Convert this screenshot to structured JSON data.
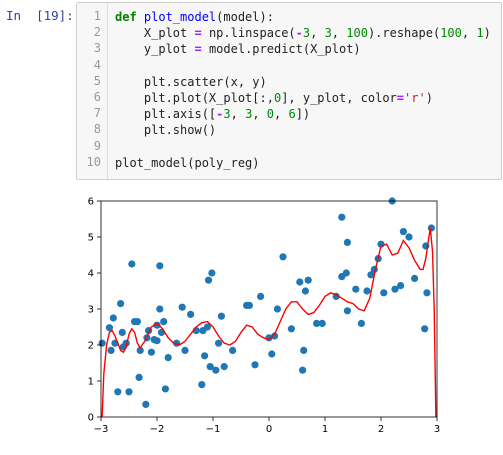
{
  "prompt": "In  [19]:",
  "code_lines": [
    {
      "n": "1",
      "tokens": [
        [
          "kw",
          "def "
        ],
        [
          "fn",
          "plot_model"
        ],
        [
          "",
          "(model):"
        ]
      ]
    },
    {
      "n": "2",
      "tokens": [
        [
          "",
          "    X_plot "
        ],
        [
          "op",
          "="
        ],
        [
          "",
          " np.linspace("
        ],
        [
          "op",
          "-"
        ],
        [
          "num",
          "3"
        ],
        [
          "",
          ", "
        ],
        [
          "num",
          "3"
        ],
        [
          "",
          ", "
        ],
        [
          "num",
          "100"
        ],
        [
          "",
          ").reshape("
        ],
        [
          "num",
          "100"
        ],
        [
          "",
          ", "
        ],
        [
          "num",
          "1"
        ],
        [
          "",
          ")"
        ]
      ]
    },
    {
      "n": "3",
      "tokens": [
        [
          "",
          "    y_plot "
        ],
        [
          "op",
          "="
        ],
        [
          "",
          " model.predict(X_plot)"
        ]
      ]
    },
    {
      "n": "4",
      "tokens": []
    },
    {
      "n": "5",
      "tokens": [
        [
          "",
          "    plt.scatter(x, y)"
        ]
      ]
    },
    {
      "n": "6",
      "tokens": [
        [
          "",
          "    plt.plot(X_plot[:,"
        ],
        [
          "num",
          "0"
        ],
        [
          "",
          "], y_plot, color"
        ],
        [
          "op",
          "="
        ],
        [
          "str",
          "'r'"
        ],
        [
          "",
          ")"
        ]
      ]
    },
    {
      "n": "7",
      "tokens": [
        [
          "",
          "    plt.axis(["
        ],
        [
          "op",
          "-"
        ],
        [
          "num",
          "3"
        ],
        [
          "",
          ", "
        ],
        [
          "num",
          "3"
        ],
        [
          "",
          ", "
        ],
        [
          "num",
          "0"
        ],
        [
          "",
          ", "
        ],
        [
          "num",
          "6"
        ],
        [
          "",
          "])"
        ]
      ]
    },
    {
      "n": "8",
      "tokens": [
        [
          "",
          "    plt.show()"
        ]
      ]
    },
    {
      "n": "9",
      "tokens": []
    },
    {
      "n": "10",
      "tokens": [
        [
          "",
          "plot_model(poly_reg)"
        ]
      ]
    }
  ],
  "chart_data": {
    "type": "scatter",
    "title": "",
    "xlabel": "",
    "ylabel": "",
    "xlim": [
      -3,
      3
    ],
    "ylim": [
      0,
      6
    ],
    "xticks": [
      "−3",
      "−2",
      "−1",
      "0",
      "1",
      "2",
      "3"
    ],
    "yticks": [
      "0",
      "1",
      "2",
      "3",
      "4",
      "5",
      "6"
    ],
    "grid": false,
    "colors": {
      "points": "#1f77b4",
      "line": "#ff0000"
    },
    "points": [
      [
        -2.98,
        2.05
      ],
      [
        -2.85,
        2.48
      ],
      [
        -2.82,
        1.85
      ],
      [
        -2.78,
        2.75
      ],
      [
        -2.75,
        2.05
      ],
      [
        -2.7,
        0.7
      ],
      [
        -2.65,
        3.15
      ],
      [
        -2.62,
        2.35
      ],
      [
        -2.6,
        1.95
      ],
      [
        -2.55,
        2.05
      ],
      [
        -2.5,
        0.7
      ],
      [
        -2.45,
        4.25
      ],
      [
        -2.4,
        2.65
      ],
      [
        -2.35,
        2.65
      ],
      [
        -2.32,
        1.1
      ],
      [
        -2.3,
        1.85
      ],
      [
        -2.2,
        0.35
      ],
      [
        -2.18,
        2.2
      ],
      [
        -2.15,
        2.4
      ],
      [
        -2.1,
        1.8
      ],
      [
        -2.05,
        2.15
      ],
      [
        -2.0,
        2.55
      ],
      [
        -2.0,
        2.12
      ],
      [
        -1.95,
        4.2
      ],
      [
        -1.95,
        3.0
      ],
      [
        -1.92,
        2.35
      ],
      [
        -1.88,
        2.65
      ],
      [
        -1.85,
        0.78
      ],
      [
        -1.8,
        1.65
      ],
      [
        -1.65,
        2.05
      ],
      [
        -1.55,
        3.05
      ],
      [
        -1.5,
        1.85
      ],
      [
        -1.4,
        2.85
      ],
      [
        -1.3,
        2.4
      ],
      [
        -1.2,
        0.9
      ],
      [
        -1.18,
        2.4
      ],
      [
        -1.15,
        1.7
      ],
      [
        -1.1,
        2.5
      ],
      [
        -1.08,
        3.8
      ],
      [
        -1.05,
        1.4
      ],
      [
        -1.02,
        4.0
      ],
      [
        -0.95,
        1.3
      ],
      [
        -0.9,
        2.05
      ],
      [
        -0.85,
        2.8
      ],
      [
        -0.8,
        1.4
      ],
      [
        -0.65,
        1.85
      ],
      [
        -0.4,
        3.1
      ],
      [
        -0.35,
        3.1
      ],
      [
        -0.25,
        1.45
      ],
      [
        -0.15,
        3.35
      ],
      [
        0.0,
        2.2
      ],
      [
        0.05,
        1.75
      ],
      [
        0.1,
        2.25
      ],
      [
        0.15,
        3.0
      ],
      [
        0.25,
        4.45
      ],
      [
        0.4,
        2.45
      ],
      [
        0.55,
        3.75
      ],
      [
        0.6,
        1.3
      ],
      [
        0.62,
        1.85
      ],
      [
        0.65,
        3.5
      ],
      [
        0.7,
        3.8
      ],
      [
        0.85,
        2.6
      ],
      [
        0.95,
        2.6
      ],
      [
        1.2,
        3.35
      ],
      [
        1.3,
        5.55
      ],
      [
        1.3,
        3.9
      ],
      [
        1.38,
        4.0
      ],
      [
        1.4,
        4.85
      ],
      [
        1.4,
        2.95
      ],
      [
        1.55,
        3.55
      ],
      [
        1.65,
        2.6
      ],
      [
        1.75,
        3.5
      ],
      [
        1.82,
        3.95
      ],
      [
        1.88,
        4.1
      ],
      [
        1.95,
        4.4
      ],
      [
        2.0,
        4.8
      ],
      [
        2.05,
        3.45
      ],
      [
        2.2,
        6.0
      ],
      [
        2.25,
        3.55
      ],
      [
        2.35,
        3.65
      ],
      [
        2.4,
        5.15
      ],
      [
        2.5,
        5.0
      ],
      [
        2.6,
        3.85
      ],
      [
        2.78,
        2.45
      ],
      [
        2.8,
        4.75
      ],
      [
        2.82,
        3.45
      ],
      [
        2.9,
        5.25
      ]
    ],
    "curve": [
      [
        -2.98,
        0.0
      ],
      [
        -2.95,
        1.2
      ],
      [
        -2.9,
        2.0
      ],
      [
        -2.85,
        2.35
      ],
      [
        -2.8,
        2.4
      ],
      [
        -2.75,
        2.25
      ],
      [
        -2.7,
        2.05
      ],
      [
        -2.65,
        1.85
      ],
      [
        -2.6,
        1.8
      ],
      [
        -2.55,
        1.95
      ],
      [
        -2.5,
        2.3
      ],
      [
        -2.45,
        2.45
      ],
      [
        -2.4,
        2.35
      ],
      [
        -2.35,
        2.05
      ],
      [
        -2.3,
        1.92
      ],
      [
        -2.2,
        2.15
      ],
      [
        -2.1,
        2.5
      ],
      [
        -2.0,
        2.6
      ],
      [
        -1.9,
        2.45
      ],
      [
        -1.8,
        2.2
      ],
      [
        -1.7,
        2.05
      ],
      [
        -1.6,
        2.0
      ],
      [
        -1.5,
        2.1
      ],
      [
        -1.4,
        2.3
      ],
      [
        -1.3,
        2.5
      ],
      [
        -1.2,
        2.62
      ],
      [
        -1.1,
        2.65
      ],
      [
        -1.0,
        2.5
      ],
      [
        -0.9,
        2.25
      ],
      [
        -0.8,
        2.05
      ],
      [
        -0.7,
        2.0
      ],
      [
        -0.6,
        2.1
      ],
      [
        -0.5,
        2.35
      ],
      [
        -0.4,
        2.55
      ],
      [
        -0.3,
        2.5
      ],
      [
        -0.2,
        2.3
      ],
      [
        -0.1,
        2.2
      ],
      [
        0.0,
        2.15
      ],
      [
        0.1,
        2.3
      ],
      [
        0.2,
        2.65
      ],
      [
        0.3,
        3.0
      ],
      [
        0.4,
        3.2
      ],
      [
        0.5,
        3.2
      ],
      [
        0.6,
        3.0
      ],
      [
        0.7,
        2.85
      ],
      [
        0.8,
        2.9
      ],
      [
        0.9,
        3.1
      ],
      [
        1.0,
        3.35
      ],
      [
        1.1,
        3.45
      ],
      [
        1.2,
        3.4
      ],
      [
        1.3,
        3.3
      ],
      [
        1.4,
        3.2
      ],
      [
        1.5,
        3.15
      ],
      [
        1.6,
        3.0
      ],
      [
        1.7,
        2.95
      ],
      [
        1.8,
        3.3
      ],
      [
        1.9,
        4.1
      ],
      [
        2.0,
        4.75
      ],
      [
        2.1,
        4.8
      ],
      [
        2.2,
        4.5
      ],
      [
        2.3,
        4.55
      ],
      [
        2.4,
        4.9
      ],
      [
        2.5,
        4.7
      ],
      [
        2.6,
        4.35
      ],
      [
        2.7,
        4.1
      ],
      [
        2.75,
        4.1
      ],
      [
        2.8,
        4.4
      ],
      [
        2.85,
        4.95
      ],
      [
        2.88,
        5.25
      ],
      [
        2.92,
        4.6
      ],
      [
        2.95,
        3.0
      ],
      [
        2.97,
        1.0
      ],
      [
        2.98,
        0.0
      ]
    ]
  }
}
